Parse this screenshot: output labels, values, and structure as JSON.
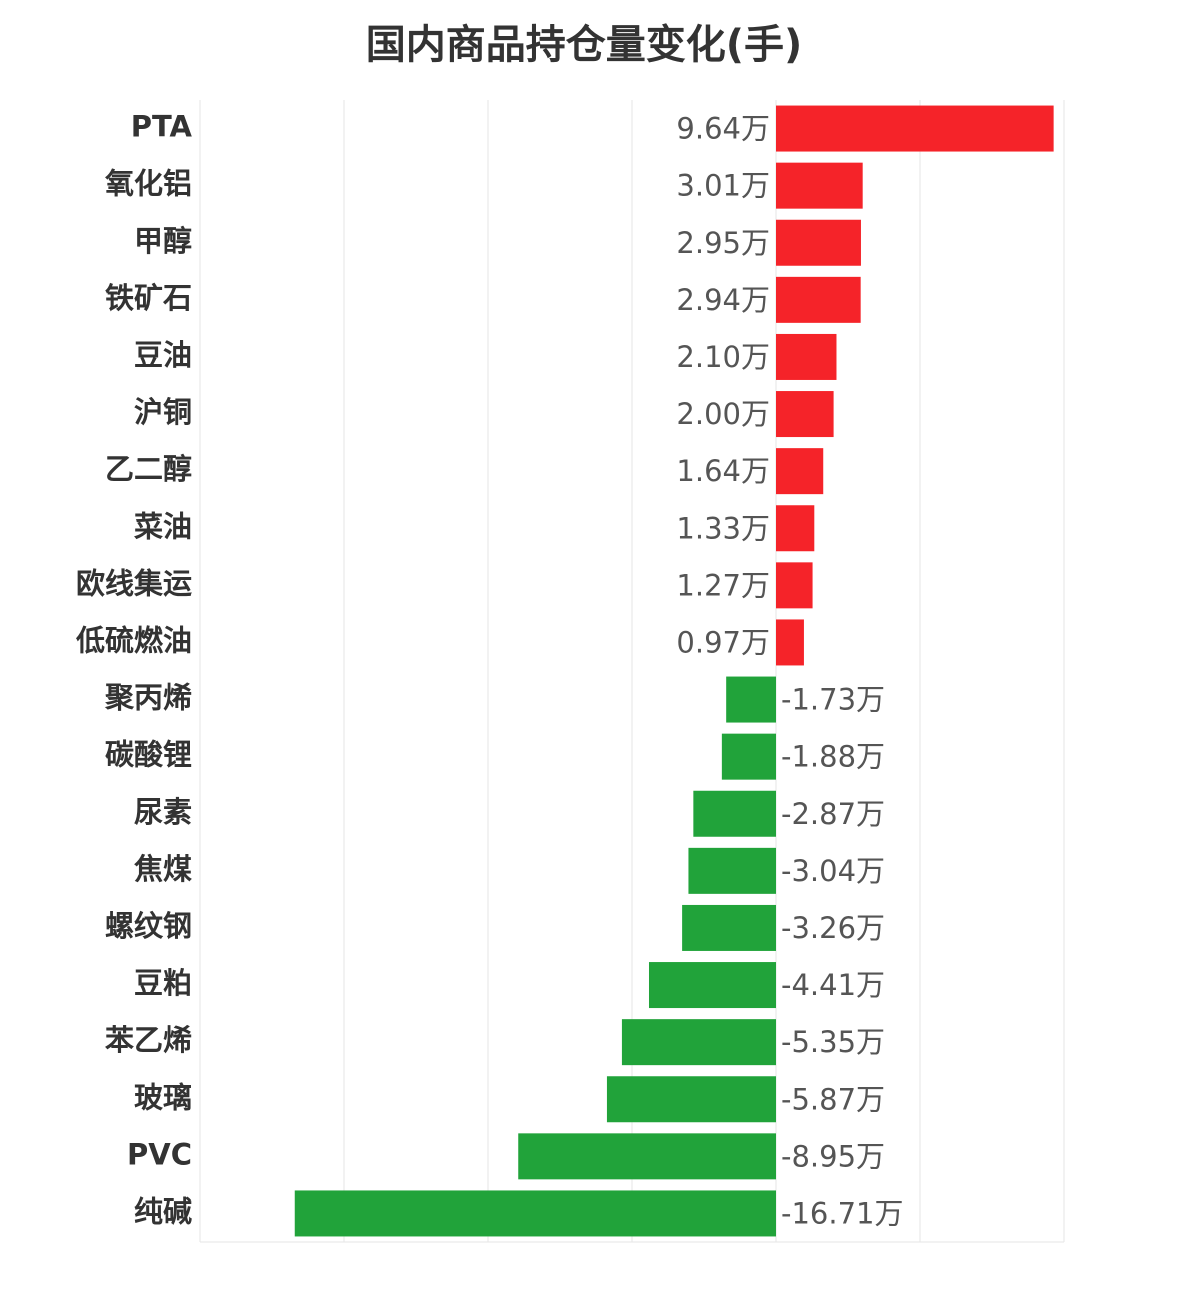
{
  "chart_data": {
    "type": "barh",
    "title": "国内商品持仓量变化(手)",
    "categories": [
      "PTA",
      "氧化铝",
      "甲醇",
      "铁矿石",
      "豆油",
      "沪铜",
      "乙二醇",
      "菜油",
      "欧线集运",
      "低硫燃油",
      "聚丙烯",
      "碳酸锂",
      "尿素",
      "焦煤",
      "螺纹钢",
      "豆粕",
      "苯乙烯",
      "玻璃",
      "PVC",
      "纯碱"
    ],
    "values": [
      9.64,
      3.01,
      2.95,
      2.94,
      2.1,
      2.0,
      1.64,
      1.33,
      1.27,
      0.97,
      -1.73,
      -1.88,
      -2.87,
      -3.04,
      -3.26,
      -4.41,
      -5.35,
      -5.87,
      -8.95,
      -16.71
    ],
    "value_labels": [
      "9.64万",
      "3.01万",
      "2.95万",
      "2.94万",
      "2.10万",
      "2.00万",
      "1.64万",
      "1.33万",
      "1.27万",
      "0.97万",
      "-1.73万",
      "-1.88万",
      "-2.87万",
      "-3.04万",
      "-3.26万",
      "-4.41万",
      "-5.35万",
      "-5.87万",
      "-8.95万",
      "-16.71万"
    ],
    "positive_color": "#f52329",
    "negative_color": "#21a33a",
    "xlim": [
      -20,
      10
    ],
    "xticks": [
      -20,
      -15,
      -10,
      -5,
      0,
      5,
      10
    ],
    "grid": true
  }
}
